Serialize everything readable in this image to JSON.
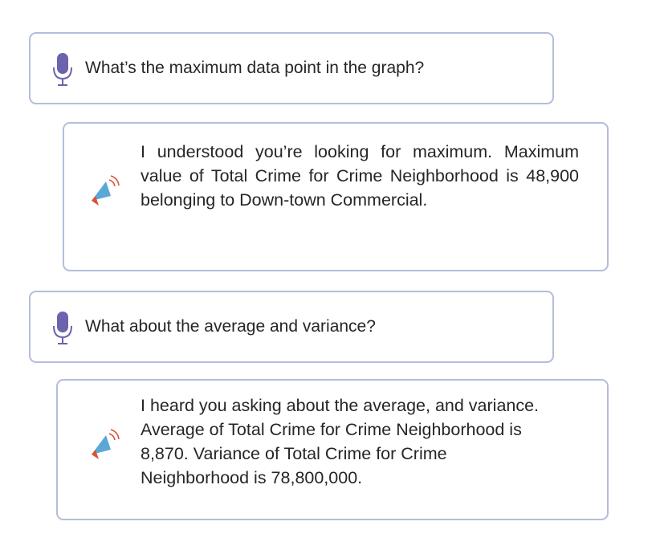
{
  "conversation": {
    "messages": [
      {
        "role": "user",
        "icon": "microphone-icon",
        "text": "What’s the maximum data point in the graph?"
      },
      {
        "role": "assistant",
        "icon": "megaphone-icon",
        "text": "I understood you’re looking for maximum. Maximum value of Total Crime for Crime Neighborhood is 48,900 belonging to Down-town Commercial."
      },
      {
        "role": "user",
        "icon": "microphone-icon",
        "text": "What about the average and variance?"
      },
      {
        "role": "assistant",
        "icon": "megaphone-icon",
        "text": "I heard you asking about the average, and variance. Average of Total Crime for Crime Neighborhood is 8,870. Variance of Total Crime for Crime Neighborhood is 78,800,000."
      }
    ]
  },
  "colors": {
    "border": "#b4bdda",
    "mic": "#6b63ae",
    "megaphone": "#5ba7d8",
    "megaphone_accent": "#d9523a",
    "text": "#262626"
  }
}
